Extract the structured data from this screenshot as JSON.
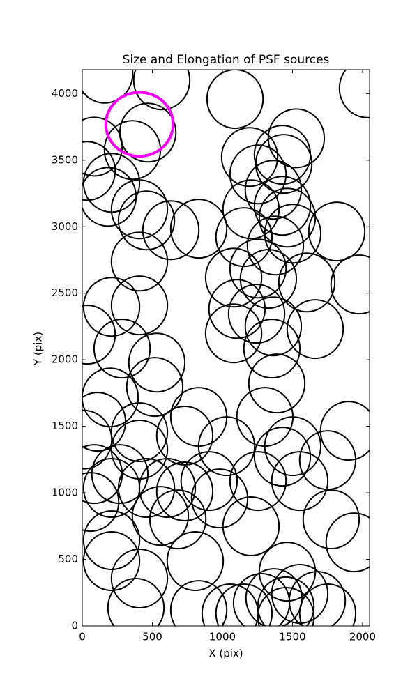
{
  "chart_data": {
    "type": "ellipses",
    "title": "Size and Elongation of PSF sources",
    "x_label": "X (pix)",
    "y_label": "Y (pix)",
    "xlim": [
      0,
      2050
    ],
    "ylim": [
      0,
      4180
    ],
    "xticks": [
      0,
      500,
      1000,
      1500,
      2000
    ],
    "yticks": [
      0,
      500,
      1000,
      1500,
      2000,
      2500,
      3000,
      3500,
      4000
    ],
    "series": [
      {
        "color": "#000000",
        "line_width": 2,
        "rx": 200,
        "ry": 220,
        "x": [
          160,
          567,
          1090,
          2035,
          468,
          85,
          358,
          35,
          209,
          184,
          408,
          458,
          632,
          831,
          408,
          209,
          408,
          35,
          284,
          532,
          517,
          199,
          109,
          408,
          731,
          831,
          408,
          85,
          1030,
          731,
          458,
          557,
          682,
          209,
          209,
          408,
          383,
          806,
          831,
          607,
          209,
          60,
          10,
          268,
          1194,
          1254,
          1428,
          1527,
          1438,
          1363,
          1428,
          1463,
          1502,
          1816,
          1204,
          1154,
          1378,
          1254,
          1328,
          1602,
          1975,
          1080,
          1104,
          1080,
          1244,
          1363,
          1662,
          1353,
          1388,
          1303,
          1900,
          1502,
          1428,
          1751,
          1552,
          1254,
          905,
          980,
          1204,
          1776,
          1940,
          1463,
          1368,
          1552,
          1677,
          1751,
          1279,
          1154,
          1453,
          1453,
          1055
        ],
        "y": [
          4150,
          4100,
          3960,
          4040,
          3707,
          3602,
          3576,
          3419,
          3330,
          3225,
          3131,
          3047,
          2974,
          2985,
          2738,
          2398,
          2409,
          2189,
          2084,
          1979,
          1796,
          1717,
          1534,
          1456,
          1430,
          1571,
          1325,
          1141,
          1351,
          1011,
          1037,
          827,
          801,
          644,
          487,
          356,
          136,
          487,
          120,
          1037,
          1037,
          932,
          1400,
          1141,
          3524,
          3393,
          3540,
          3665,
          3472,
          3278,
          3157,
          3068,
          2948,
          2964,
          3131,
          2922,
          2859,
          2686,
          2608,
          2581,
          2566,
          2618,
          2382,
          2199,
          2346,
          2251,
          2231,
          2084,
          1822,
          1571,
          1466,
          1351,
          1272,
          1246,
          1089,
          1089,
          1089,
          958,
          749,
          801,
          628,
          408,
          209,
          241,
          188,
          94,
          173,
          94,
          147,
          68,
          94
        ]
      },
      {
        "color": "#ff00ff",
        "line_width": 4,
        "rx": 240,
        "ry": 240,
        "x": [
          408
        ],
        "y": [
          3770
        ]
      }
    ]
  }
}
